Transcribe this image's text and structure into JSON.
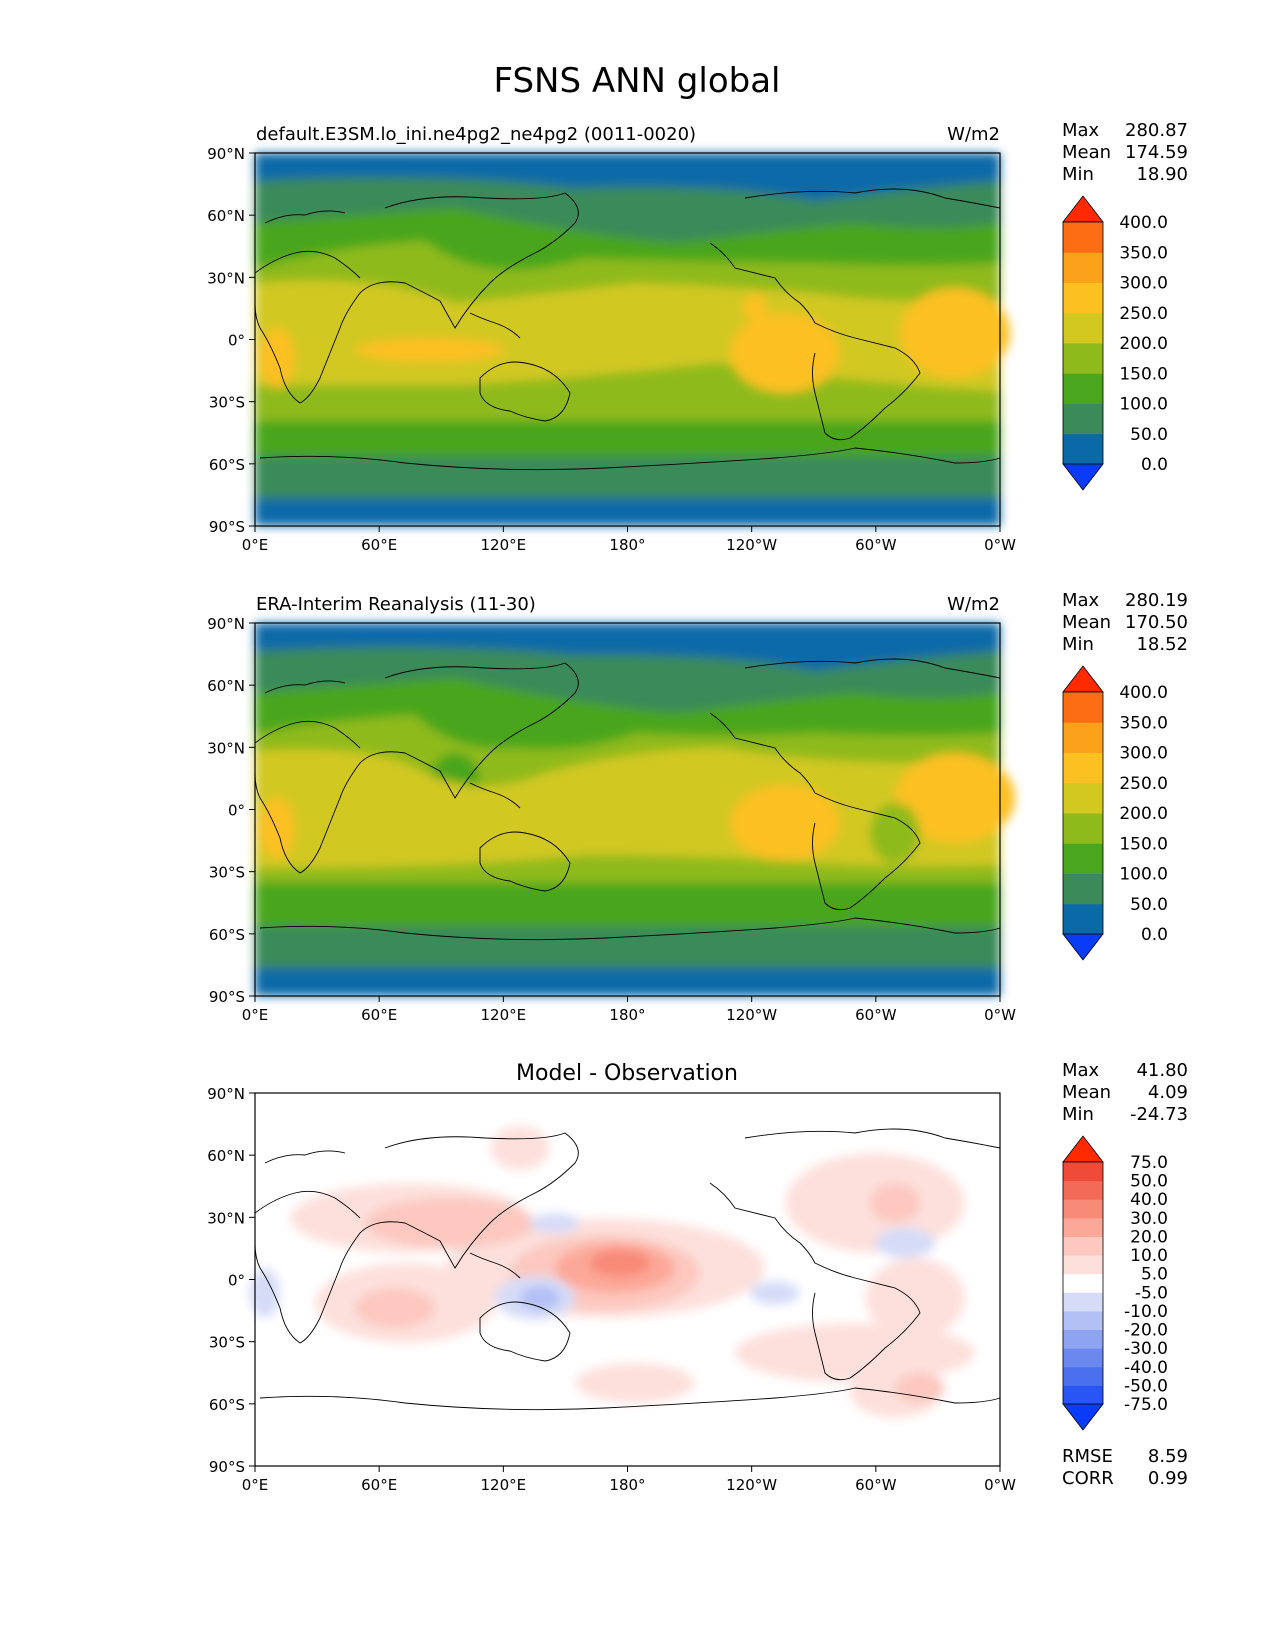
{
  "figure": {
    "title": "FSNS ANN global"
  },
  "axes": {
    "lat_ticks": [
      "90°N",
      "60°N",
      "30°N",
      "0°",
      "30°S",
      "60°S",
      "90°S"
    ],
    "lon_ticks": [
      "0°E",
      "60°E",
      "120°E",
      "180°",
      "120°W",
      "60°W",
      "0°W"
    ]
  },
  "panels": [
    {
      "left_title": "default.E3SM.lo_ini.ne4pg2_ne4pg2 (0011-0020)",
      "center_title": "",
      "units": "W/m2",
      "stats": {
        "max_label": "Max",
        "max": "280.87",
        "mean_label": "Mean",
        "mean": "174.59",
        "min_label": "Min",
        "min": "18.90"
      },
      "colorbar": {
        "labels": [
          "400.0",
          "350.0",
          "300.0",
          "250.0",
          "200.0",
          "150.0",
          "100.0",
          "50.0",
          "0.0"
        ],
        "under_color": "#0a3cf7",
        "over_color": "#ff2a00",
        "colors": [
          "#0a6aa8",
          "#3a8a5a",
          "#4aa61c",
          "#8fba1c",
          "#d2c820",
          "#fcc020",
          "#fca11a",
          "#fc6c12"
        ]
      }
    },
    {
      "left_title": "ERA-Interim Reanalysis (11-30)",
      "center_title": "",
      "units": "W/m2",
      "stats": {
        "max_label": "Max",
        "max": "280.19",
        "mean_label": "Mean",
        "mean": "170.50",
        "min_label": "Min",
        "min": "18.52"
      },
      "colorbar": {
        "labels": [
          "400.0",
          "350.0",
          "300.0",
          "250.0",
          "200.0",
          "150.0",
          "100.0",
          "50.0",
          "0.0"
        ],
        "under_color": "#0a3cf7",
        "over_color": "#ff2a00",
        "colors": [
          "#0a6aa8",
          "#3a8a5a",
          "#4aa61c",
          "#8fba1c",
          "#d2c820",
          "#fcc020",
          "#fca11a",
          "#fc6c12"
        ]
      }
    },
    {
      "left_title": "",
      "center_title": "Model - Observation",
      "units": "",
      "stats": {
        "max_label": "Max",
        "max": "41.80",
        "mean_label": "Mean",
        "mean": "4.09",
        "min_label": "Min",
        "min": "-24.73"
      },
      "colorbar": {
        "labels": [
          "75.0",
          "50.0",
          "40.0",
          "30.0",
          "20.0",
          "10.0",
          "5.0",
          "-5.0",
          "-10.0",
          "-20.0",
          "-30.0",
          "-40.0",
          "-50.0",
          "-75.0"
        ],
        "under_color": "#0a3cf7",
        "over_color": "#ff2a00",
        "colors": [
          "#2a55f5",
          "#4a70f0",
          "#6a88ee",
          "#8ea4f0",
          "#b2c0f5",
          "#d6dcf8",
          "#ffffff",
          "#fde0dc",
          "#fcc8c0",
          "#fca898",
          "#f88a78",
          "#f46a58",
          "#f04a38"
        ]
      },
      "rmse_label": "RMSE",
      "rmse": "8.59",
      "corr_label": "CORR",
      "corr": "0.99"
    }
  ]
}
